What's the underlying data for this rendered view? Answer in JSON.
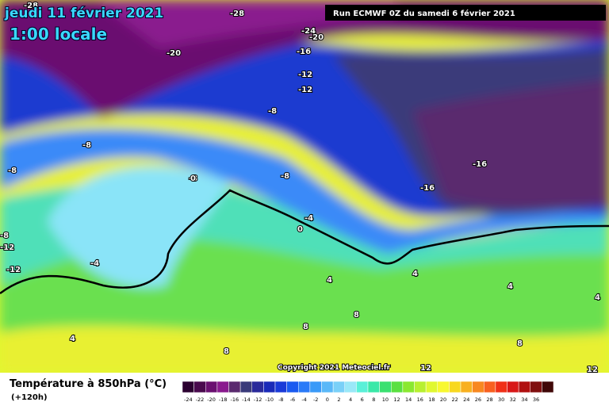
{
  "header": {
    "date": "jeudi 11 février 2021",
    "time": "1:00 locale",
    "run": "Run ECMWF 0Z du samedi 6 février 2021",
    "copyright": "Copyright 2021 Meteociel.fr"
  },
  "legend": {
    "title": "Température à 850hPa (°C)",
    "subtitle": "(+120h)",
    "labels": [
      -24,
      -22,
      -20,
      -18,
      -16,
      -14,
      -12,
      -10,
      -8,
      -6,
      -4,
      -2,
      0,
      2,
      4,
      6,
      8,
      10,
      12,
      14,
      16,
      18,
      20,
      22,
      24,
      26,
      28,
      30,
      32,
      34,
      36
    ],
    "colors": [
      "#2b0030",
      "#4a0a4e",
      "#6a1070",
      "#8a1a8e",
      "#5a2a6e",
      "#3a3a7a",
      "#2a2a9a",
      "#1a2ab8",
      "#1a3ad8",
      "#1a5af0",
      "#2a7af8",
      "#3a9af8",
      "#5ab8f8",
      "#7ad0f8",
      "#9ae8f8",
      "#5af0d8",
      "#3ae8a8",
      "#3ae070",
      "#5ae040",
      "#8ae830",
      "#b8f030",
      "#e0f830",
      "#f8f830",
      "#f8d820",
      "#f8b020",
      "#f88820",
      "#f86020",
      "#f03018",
      "#d81818",
      "#b01010",
      "#801010",
      "#400808"
    ]
  },
  "contour_labels": [
    "-28",
    "-28",
    "-24",
    "-20",
    "-20",
    "-16",
    "-12",
    "-12",
    "-8",
    "-8",
    "-8",
    "-8",
    "0",
    "-8",
    "-4",
    "0",
    "-16",
    "-16",
    "-8",
    "-12",
    "-4",
    "-12",
    "4",
    "4",
    "4",
    "4",
    "8",
    "8",
    "4",
    "8",
    "8",
    "12",
    "12"
  ]
}
